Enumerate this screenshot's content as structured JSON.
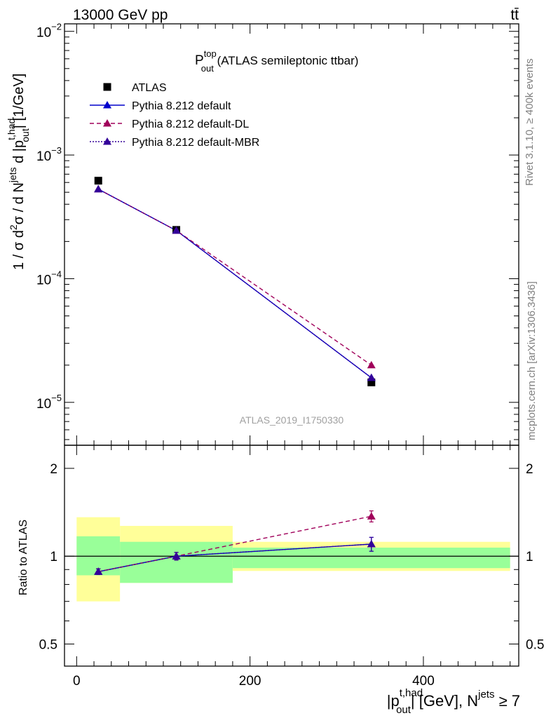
{
  "header": {
    "energy_label": "13000 GeV pp",
    "process_label": "tt̄"
  },
  "side_labels": {
    "rivet": "Rivet 3.1.10, ≥ 400k events",
    "mcplots": "mcplots.cern.ch [arXiv:1306.3436]"
  },
  "watermark": "ATLAS_2019_I1750330",
  "colors": {
    "atlas": "#000000",
    "default": "#0000cc",
    "default_dl": "#a0005a",
    "default_mbr": "#330099",
    "band_inner": "#99ff99",
    "band_outer": "#ffff99"
  },
  "chart_data": [
    {
      "id": "main",
      "type": "line",
      "title_main": "P",
      "title_sup": "top",
      "title_sub": "out",
      "title_rest": " (ATLAS semileptonic ttbar)",
      "ylabel": "1 / σ d²σ / d N^jets d |p_out^t,had| [1/GeV]",
      "yscale": "log",
      "ylim": [
        4.5e-06,
        0.0115
      ],
      "xlim": [
        -14,
        510
      ],
      "ytick_labels": [
        {
          "value": 1e-05,
          "mant": "10",
          "exp": "−5"
        },
        {
          "value": 0.0001,
          "mant": "10",
          "exp": "−4"
        },
        {
          "value": 0.001,
          "mant": "10",
          "exp": "−3"
        },
        {
          "value": 0.01,
          "mant": "10",
          "exp": "−2"
        }
      ],
      "legend": [
        {
          "label": "ATLAS",
          "series": "atlas",
          "marker": "square",
          "style": "none"
        },
        {
          "label": "Pythia 8.212 default",
          "series": "default",
          "marker": "triangle",
          "style": "solid"
        },
        {
          "label": "Pythia 8.212 default-DL",
          "series": "default_dl",
          "marker": "triangle",
          "style": "dashed"
        },
        {
          "label": "Pythia 8.212 default-MBR",
          "series": "default_mbr",
          "marker": "triangle",
          "style": "dotted"
        }
      ],
      "series": [
        {
          "name": "ATLAS",
          "key": "atlas",
          "x": [
            25,
            115,
            340
          ],
          "y": [
            0.00062,
            0.000248,
            1.45e-05
          ]
        },
        {
          "name": "Pythia 8.212 default",
          "key": "default",
          "x": [
            25,
            115,
            340
          ],
          "y": [
            0.00053,
            0.000245,
            1.58e-05
          ]
        },
        {
          "name": "Pythia 8.212 default-DL",
          "key": "default_dl",
          "x": [
            25,
            115,
            340
          ],
          "y": [
            0.00053,
            0.000245,
            2e-05
          ]
        },
        {
          "name": "Pythia 8.212 default-MBR",
          "key": "default_mbr",
          "x": [
            25,
            115,
            340
          ],
          "y": [
            0.00053,
            0.000245,
            1.58e-05
          ]
        }
      ]
    },
    {
      "id": "ratio",
      "type": "line",
      "ylabel": "Ratio to ATLAS",
      "yscale": "log",
      "ylim": [
        0.42,
        2.4
      ],
      "xlim": [
        -14,
        510
      ],
      "ytick_labels": [
        {
          "value": 0.5,
          "label": "0.5"
        },
        {
          "value": 1,
          "label": "1"
        },
        {
          "value": 2,
          "label": "2"
        }
      ],
      "xtick_labels": [
        {
          "value": 0,
          "label": "0"
        },
        {
          "value": 200,
          "label": "200"
        },
        {
          "value": 400,
          "label": "400"
        }
      ],
      "xlabel": "|p_out^t,had| [GeV], N^jets ≥ 7",
      "bins": [
        {
          "lo": 0,
          "hi": 50,
          "inner": [
            0.86,
            1.17
          ],
          "outer": [
            0.7,
            1.36
          ]
        },
        {
          "lo": 50,
          "hi": 180,
          "inner": [
            0.81,
            1.12
          ],
          "outer": [
            0.81,
            1.27
          ]
        },
        {
          "lo": 180,
          "hi": 500,
          "inner": [
            0.91,
            1.07
          ],
          "outer": [
            0.89,
            1.12
          ]
        }
      ],
      "series": [
        {
          "name": "Pythia 8.212 default",
          "key": "default",
          "x": [
            25,
            115,
            340
          ],
          "y": [
            0.885,
            1.0,
            1.1
          ],
          "err": [
            0.02,
            0.03,
            0.06
          ]
        },
        {
          "name": "Pythia 8.212 default-DL",
          "key": "default_dl",
          "x": [
            25,
            115,
            340
          ],
          "y": [
            0.885,
            1.0,
            1.37
          ],
          "err": [
            0.02,
            0.03,
            0.06
          ]
        },
        {
          "name": "Pythia 8.212 default-MBR",
          "key": "default_mbr",
          "x": [
            25,
            115,
            340
          ],
          "y": [
            0.885,
            1.0,
            1.1
          ],
          "err": [
            0.02,
            0.03,
            0.06
          ]
        }
      ]
    }
  ]
}
